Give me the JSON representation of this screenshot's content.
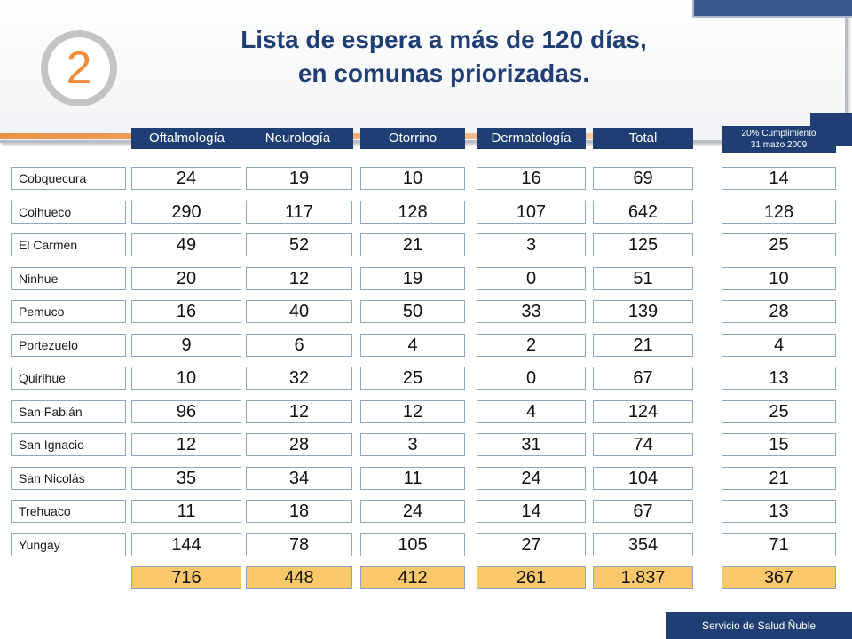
{
  "slide_number": "2",
  "title": {
    "line1": "Lista de espera a más de 120 días,",
    "line2": "en comunas priorizadas."
  },
  "headers": {
    "oftalmologia": "Oftalmología",
    "neurologia": "Neurología",
    "otorrino": "Otorrino",
    "dermatologia": "Dermatología",
    "total": "Total",
    "cumplimiento_line1": "20% Cumplimiento",
    "cumplimiento_line2": "31 mazo 2009"
  },
  "rows": [
    {
      "comuna": "Cobquecura",
      "oft": "24",
      "neu": "19",
      "oto": "10",
      "der": "16",
      "total": "69",
      "cump": "14"
    },
    {
      "comuna": "Coihueco",
      "oft": "290",
      "neu": "117",
      "oto": "128",
      "der": "107",
      "total": "642",
      "cump": "128"
    },
    {
      "comuna": "El Carmen",
      "oft": "49",
      "neu": "52",
      "oto": "21",
      "der": "3",
      "total": "125",
      "cump": "25"
    },
    {
      "comuna": "Ninhue",
      "oft": "20",
      "neu": "12",
      "oto": "19",
      "der": "0",
      "total": "51",
      "cump": "10"
    },
    {
      "comuna": "Pemuco",
      "oft": "16",
      "neu": "40",
      "oto": "50",
      "der": "33",
      "total": "139",
      "cump": "28"
    },
    {
      "comuna": "Portezuelo",
      "oft": "9",
      "neu": "6",
      "oto": "4",
      "der": "2",
      "total": "21",
      "cump": "4"
    },
    {
      "comuna": "Quirihue",
      "oft": "10",
      "neu": "32",
      "oto": "25",
      "der": "0",
      "total": "67",
      "cump": "13"
    },
    {
      "comuna": "San Fabián",
      "oft": "96",
      "neu": "12",
      "oto": "12",
      "der": "4",
      "total": "124",
      "cump": "25"
    },
    {
      "comuna": "San Ignacio",
      "oft": "12",
      "neu": "28",
      "oto": "3",
      "der": "31",
      "total": "74",
      "cump": "15"
    },
    {
      "comuna": "San Nicolás",
      "oft": "35",
      "neu": "34",
      "oto": "11",
      "der": "24",
      "total": "104",
      "cump": "21"
    },
    {
      "comuna": "Trehuaco",
      "oft": "11",
      "neu": "18",
      "oto": "24",
      "der": "14",
      "total": "67",
      "cump": "13"
    },
    {
      "comuna": "Yungay",
      "oft": "144",
      "neu": "78",
      "oto": "105",
      "der": "27",
      "total": "354",
      "cump": "71"
    }
  ],
  "totals": {
    "oft": "716",
    "neu": "448",
    "oto": "412",
    "der": "261",
    "total": "1.837",
    "cump": "367"
  },
  "footer": "Servicio de Salud Ñuble",
  "colors": {
    "navy": "#1f3f74",
    "orange_accent": "#f08c3a",
    "total_fill": "#f9c86b",
    "cell_border": "#8fa7c4"
  }
}
